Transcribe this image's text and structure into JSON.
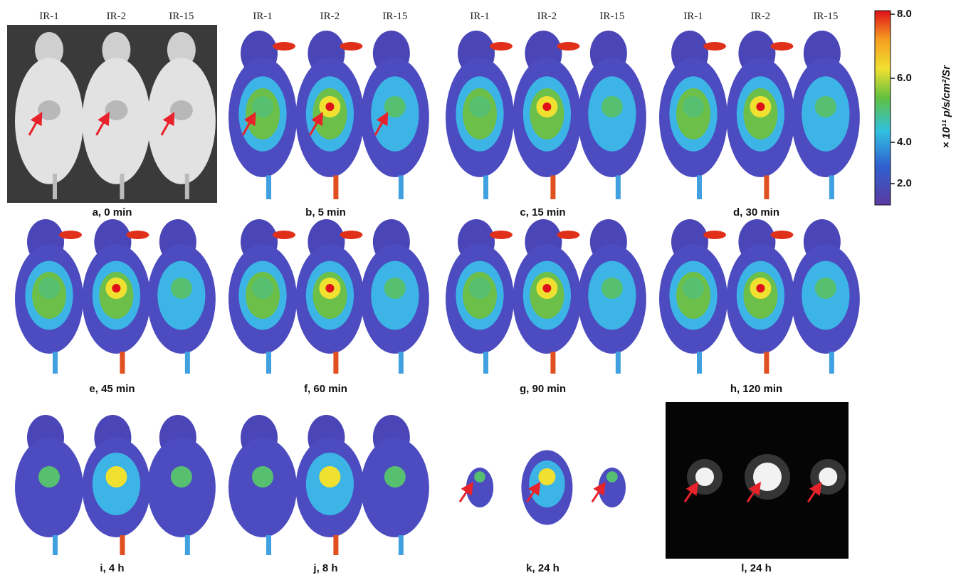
{
  "panels": [
    {
      "caption": "a, 0 min",
      "columns": [
        "IR-1",
        "IR-2",
        "IR-15"
      ]
    },
    {
      "caption": "b, 5 min",
      "columns": [
        "IR-1",
        "IR-2",
        "IR-15"
      ]
    },
    {
      "caption": "c, 15 min",
      "columns": [
        "IR-1",
        "IR-2",
        "IR-15"
      ]
    },
    {
      "caption": "d, 30 min",
      "columns": [
        "IR-1",
        "IR-2",
        "IR-15"
      ]
    },
    {
      "caption": "e, 45 min"
    },
    {
      "caption": "f, 60 min"
    },
    {
      "caption": "g, 90 min"
    },
    {
      "caption": "h, 120 min"
    },
    {
      "caption": "i, 4 h"
    },
    {
      "caption": "j, 8 h"
    },
    {
      "caption": "k, 24 h"
    },
    {
      "caption": "l, 24 h"
    }
  ],
  "colorbar": {
    "ticks": [
      "8.0",
      "6.0",
      "4.0",
      "2.0"
    ],
    "label": "× 10¹¹ p/s/cm²/Sr"
  }
}
